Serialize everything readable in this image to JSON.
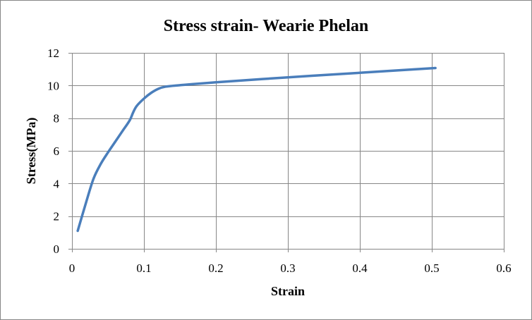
{
  "chart_data": {
    "type": "line",
    "title": "Stress strain- Wearie Phelan",
    "xlabel": "Strain",
    "ylabel": "Stress(MPa)",
    "xlim": [
      0,
      0.6
    ],
    "ylim": [
      0,
      12
    ],
    "xticks": [
      "0",
      "0.1",
      "0.2",
      "0.3",
      "0.4",
      "0.5",
      "0.6"
    ],
    "yticks": [
      "0",
      "2",
      "4",
      "6",
      "8",
      "10",
      "12"
    ],
    "grid": true,
    "legend": "none",
    "series": [
      {
        "color": "#4a7ebb",
        "x": [
          0.008,
          0.02,
          0.03,
          0.04,
          0.05,
          0.06,
          0.07,
          0.08,
          0.085,
          0.09,
          0.1,
          0.11,
          0.12,
          0.13,
          0.15,
          0.2,
          0.3,
          0.4,
          0.505
        ],
        "y": [
          1.1,
          2.9,
          4.3,
          5.2,
          5.9,
          6.55,
          7.2,
          7.85,
          8.35,
          8.75,
          9.2,
          9.55,
          9.8,
          9.93,
          10.02,
          10.2,
          10.5,
          10.78,
          11.07
        ]
      }
    ]
  }
}
